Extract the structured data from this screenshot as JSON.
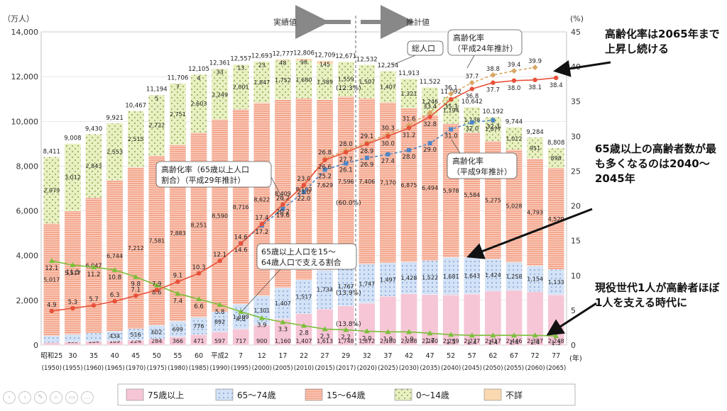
{
  "annotations": {
    "left_unit": "（万人）",
    "right_unit": "(%)",
    "actual_label": "実績値",
    "projection_label": "推計値",
    "total_pop_label": "総人口",
    "aging_2012_label_1": "高齢化率",
    "aging_2012_label_2": "（平成24年推計）",
    "aging_2017_label_1": "高齢化率（65歳以上人口",
    "aging_2017_label_2": "割合）（平成29年推計）",
    "aging_1997_label_1": "高齢化率",
    "aging_1997_label_2": "（平成9年推計）",
    "support_label_1": "65歳以上人口を15～",
    "support_label_2": "64歳人口で支える割合",
    "x_unit": "(年)",
    "pct_2017_total": "(12.3%)",
    "pct_2017_1564": "(60.0%)",
    "pct_2017_6574": "(13.9%)",
    "pct_2017_75": "(13.8%)"
  },
  "callouts": {
    "c1": "高齢化率は2065年まで上昇し続ける",
    "c2": "65歳以上の高齢者数が最も多くなるのは2040～2045年",
    "c3": "現役世代1人が高齢者ほぼ1人を支える時代に"
  },
  "nav_icons": [
    "prev-slide-icon",
    "next-slide-icon",
    "pen-icon",
    "search-icon",
    "menu-icon",
    "more-icon"
  ],
  "nav_glyphs": [
    "‹",
    "›",
    "✎",
    "⌕",
    "▭",
    "…"
  ],
  "chart_data": {
    "type": "bar",
    "left_ylim": [
      0,
      14000
    ],
    "left_ticks": [
      "0",
      "2,000",
      "4,000",
      "6,000",
      "8,000",
      "10,000",
      "12,000",
      "14,000"
    ],
    "right_ylim": [
      0,
      45
    ],
    "right_ticks": [
      "0",
      "5",
      "10",
      "15",
      "20",
      "25",
      "30",
      "35",
      "40",
      "45"
    ],
    "categories": [
      "昭和25",
      "30",
      "35",
      "40",
      "45",
      "50",
      "55",
      "60",
      "平成2",
      "7",
      "12",
      "17",
      "22",
      "27",
      "29",
      "32",
      "37",
      "42",
      "47",
      "52",
      "57",
      "62",
      "67",
      "72",
      "77"
    ],
    "years": [
      "(1950)",
      "(1955)",
      "(1960)",
      "(1965)",
      "(1970)",
      "(1975)",
      "(1980)",
      "(1985)",
      "(1990)",
      "(1995)",
      "(2000)",
      "(2005)",
      "(2010)",
      "(2015)",
      "(2017)",
      "(2020)",
      "(2025)",
      "(2030)",
      "(2035)",
      "(2040)",
      "(2045)",
      "(2050)",
      "(2055)",
      "(2060)",
      "(2065)"
    ],
    "totals": [
      "8,411",
      "9,008",
      "9,430",
      "9,921",
      "10,467",
      "11,194",
      "11,706",
      "12,105",
      "12,361",
      "12,557",
      "12,693",
      "12,777",
      "12,806",
      "12,709",
      "12,671",
      "12,532",
      "12,254",
      "11,913",
      "11,522",
      "11,092",
      "10,642",
      "10,192",
      "9,744",
      "9,284",
      "8,808"
    ],
    "series": [
      {
        "name": "75歳以上",
        "color": "#f6c6d6",
        "values": [
          107,
          139,
          164,
          189,
          224,
          284,
          366,
          471,
          597,
          717,
          900,
          1160,
          1407,
          1613,
          1748,
          1872,
          2180,
          2288,
          2260,
          2239,
          2277,
          2417,
          2446,
          2387,
          2248
        ]
      },
      {
        "name": "65～74歳",
        "color": "#c7d9f2",
        "values": [
          309,
          338,
          376,
          434,
          516,
          602,
          699,
          776,
          892,
          1109,
          1301,
          1407,
          1517,
          1734,
          1767,
          1747,
          1497,
          1428,
          1522,
          1681,
          1643,
          1424,
          1258,
          1154,
          1133
        ]
      },
      {
        "name": "15～64歳",
        "color": "#f4a78e",
        "values": [
          5017,
          5517,
          6047,
          6744,
          7212,
          7581,
          7883,
          8251,
          8590,
          8716,
          8622,
          8409,
          8103,
          7629,
          7596,
          7406,
          7170,
          6875,
          6494,
          5978,
          5584,
          5275,
          5028,
          4793,
          4529
        ]
      },
      {
        "name": "0～14歳",
        "color": "#e8f0c2",
        "values": [
          2979,
          3012,
          2843,
          2553,
          2515,
          2722,
          2751,
          2603,
          2249,
          2001,
          1847,
          1752,
          1680,
          1589,
          1559,
          1507,
          1407,
          1321,
          1246,
          1194,
          1138,
          1077,
          1012,
          951,
          898
        ]
      },
      {
        "name": "不詳",
        "color": "#fbd9b0",
        "values": [
          0,
          0,
          0,
          0,
          0,
          5,
          7,
          4,
          33,
          13,
          23,
          48,
          98,
          145,
          0,
          0,
          0,
          0,
          0,
          0,
          0,
          0,
          0,
          0,
          0
        ]
      }
    ],
    "aging_rate_2017": {
      "name": "高齢化率（65歳以上人口割合）（平成29年推計）",
      "values": [
        4.9,
        5.3,
        5.7,
        6.3,
        7.1,
        7.9,
        9.1,
        10.3,
        12.1,
        14.6,
        17.4,
        20.2,
        23.0,
        26.6,
        27.7,
        28.9,
        30.0,
        31.2,
        32.8,
        35.3,
        36.8,
        37.7,
        38.0,
        38.1,
        38.4
      ]
    },
    "aging_rate_2012": {
      "name": "高齢化率（平成24年推計）",
      "points": [
        [
          11,
          20.2
        ],
        [
          12,
          23.0
        ],
        [
          13,
          26.8
        ],
        [
          14,
          28.0
        ],
        [
          15,
          29.1
        ],
        [
          16,
          30.3
        ],
        [
          17,
          31.6
        ],
        [
          18,
          33.4
        ],
        [
          19,
          36.1
        ],
        [
          20,
          37.7
        ],
        [
          21,
          38.8
        ],
        [
          22,
          39.4
        ],
        [
          23,
          39.9
        ]
      ]
    },
    "aging_rate_1997": {
      "name": "高齢化率（平成9年推計）",
      "points": [
        [
          9,
          14.6
        ],
        [
          10,
          17.2
        ],
        [
          11,
          19.6
        ],
        [
          12,
          22.0
        ],
        [
          13,
          25.2
        ],
        [
          14,
          26.1
        ],
        [
          15,
          26.9
        ],
        [
          16,
          27.4
        ],
        [
          17,
          28.0
        ],
        [
          18,
          29.0
        ],
        [
          19,
          31.0
        ],
        [
          20,
          32.0
        ],
        [
          21,
          32.3
        ]
      ]
    },
    "support_ratio": {
      "name": "65歳以上人口を15～64歳人口で支える割合",
      "values": [
        12.1,
        11.5,
        11.2,
        10.8,
        9.8,
        8.6,
        7.4,
        6.6,
        5.8,
        4.8,
        3.9,
        3.3,
        2.8,
        2.3,
        2.2,
        2.0,
        1.9,
        1.9,
        1.7,
        1.5,
        1.4,
        1.4,
        1.4,
        1.4,
        1.3
      ]
    },
    "legend": [
      "75歳以上",
      "65～74歳",
      "15～64歳",
      "0～14歳",
      "不詳"
    ]
  }
}
